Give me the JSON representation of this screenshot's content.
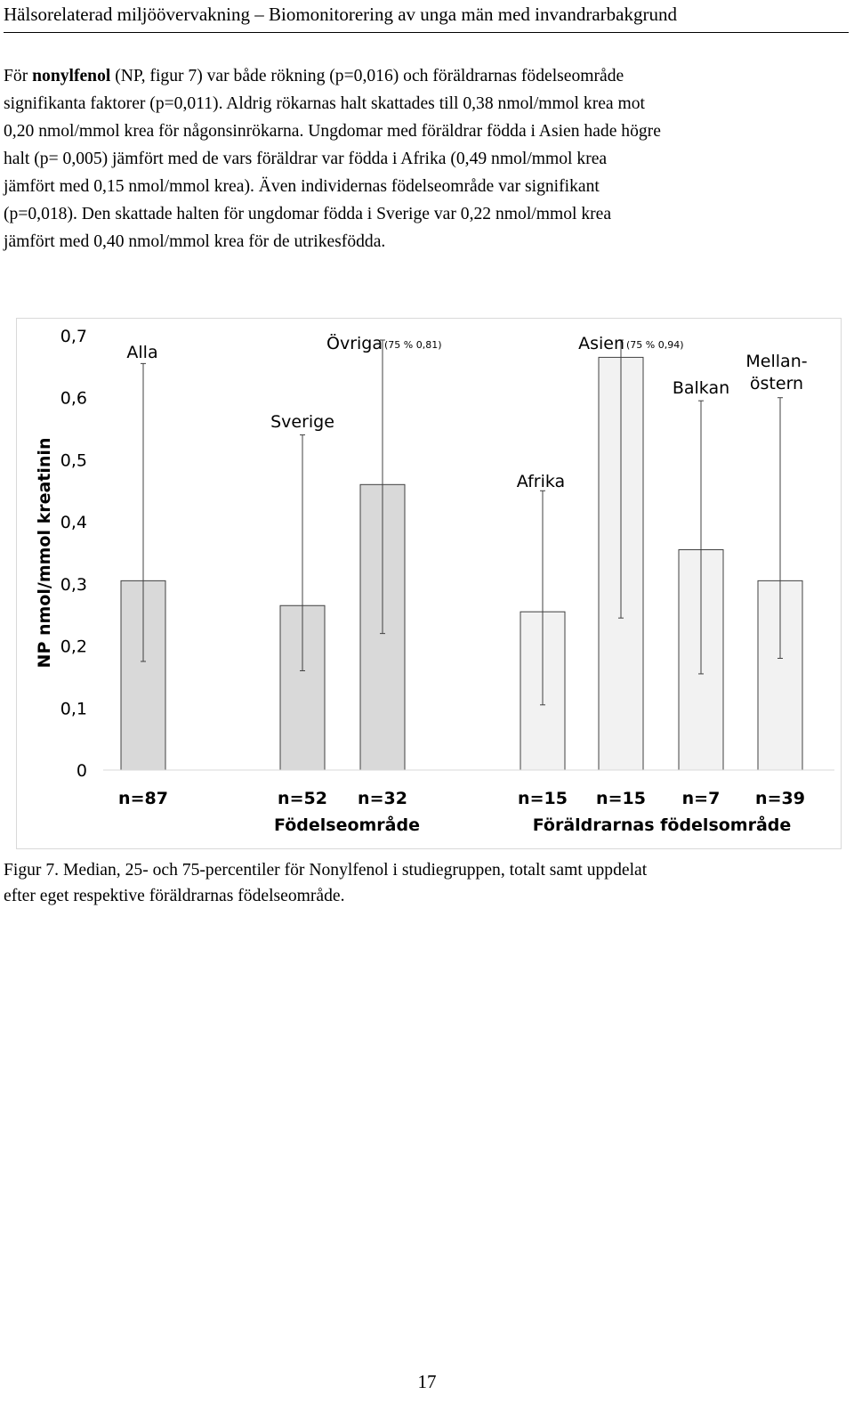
{
  "header": {
    "title": "Hälsorelaterad miljöövervakning – Biomonitorering av unga män med invandrarbakgrund"
  },
  "paragraph": {
    "line1_pre": "För ",
    "line1_bold": "nonylfenol",
    "line1_post": " (NP, figur 7) var både rökning (p=0,016) och föräldrarnas födelseområde",
    "lines": [
      "signifikanta faktorer (p=0,011). Aldrig rökarnas halt skattades till 0,38 nmol/mmol krea mot",
      "0,20 nmol/mmol krea för någonsinrökarna. Ungdomar med föräldrar födda i Asien hade högre",
      "halt (p= 0,005) jämfört med de vars föräldrar var födda i Afrika (0,49 nmol/mmol krea",
      "jämfört med 0,15 nmol/mmol krea). Även individernas födelseområde var signifikant",
      "(p=0,018). Den skattade halten för ungdomar födda i Sverige var 0,22 nmol/mmol krea",
      "jämfört med 0,40 nmol/mmol krea för de utrikesfödda."
    ]
  },
  "chart_data": {
    "type": "bar",
    "ylabel": "NP nmol/mmol kreatinin",
    "ylim": [
      0,
      0.7
    ],
    "yticks": [
      "0",
      "0,1",
      "0,2",
      "0,3",
      "0,4",
      "0,5",
      "0,6",
      "0,7"
    ],
    "bars": [
      {
        "label": "Alla",
        "n": "n=87",
        "median": 0.305,
        "p25": 0.175,
        "p75": 0.655,
        "color": "#d9d9d9",
        "note": ""
      },
      {
        "label": "Sverige",
        "n": "n=52",
        "median": 0.265,
        "p25": 0.16,
        "p75": 0.54,
        "color": "#d9d9d9",
        "note": ""
      },
      {
        "label": "Övriga",
        "n": "n=32",
        "median": 0.46,
        "p25": 0.22,
        "p75": 0.81,
        "color": "#d9d9d9",
        "note": "(75 % 0,81)"
      },
      {
        "label": "Afrika",
        "n": "n=15",
        "median": 0.255,
        "p25": 0.105,
        "p75": 0.45,
        "color": "#f2f2f2",
        "note": ""
      },
      {
        "label": "Asien",
        "n": "n=15",
        "median": 0.665,
        "p25": 0.245,
        "p75": 0.94,
        "color": "#f2f2f2",
        "note": "(75 % 0,94)"
      },
      {
        "label": "Balkan",
        "n": "n=7",
        "median": 0.355,
        "p25": 0.155,
        "p75": 0.595,
        "color": "#f2f2f2",
        "note": ""
      },
      {
        "label": "Mellan-\nöstern",
        "n": "n=39",
        "median": 0.305,
        "p25": 0.18,
        "p75": 0.6,
        "color": "#f2f2f2",
        "note": ""
      }
    ],
    "group_labels": [
      "Födelseområde",
      "Föräldrarnas födelsområde"
    ]
  },
  "caption": {
    "line1": "Figur 7. Median, 25- och 75-percentiler för Nonylfenol i studiegruppen, totalt samt uppdelat",
    "line2": "efter eget respektive föräldrarnas födelseområde."
  },
  "page": {
    "number": "17"
  }
}
